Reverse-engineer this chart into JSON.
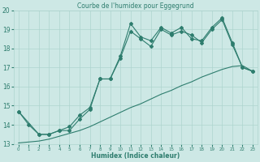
{
  "title": "Courbe de l'humidex pour Eggegrund",
  "xlabel": "Humidex (Indice chaleur)",
  "xlim": [
    -0.5,
    23.5
  ],
  "ylim": [
    13,
    20
  ],
  "yticks": [
    13,
    14,
    15,
    16,
    17,
    18,
    19,
    20
  ],
  "xticks": [
    0,
    1,
    2,
    3,
    4,
    5,
    6,
    7,
    8,
    9,
    10,
    11,
    12,
    13,
    14,
    15,
    16,
    17,
    18,
    19,
    20,
    21,
    22,
    23
  ],
  "line_color": "#2e7d6e",
  "bg_color": "#cde8e5",
  "grid_color": "#aed4cf",
  "line1_x": [
    0,
    1,
    2,
    3,
    4,
    5,
    6,
    7,
    8,
    9,
    10,
    11,
    12,
    13,
    14,
    15,
    16,
    17,
    18,
    19,
    20,
    21,
    22,
    23
  ],
  "line1_y": [
    14.7,
    14.0,
    13.5,
    13.5,
    13.7,
    13.7,
    14.3,
    14.8,
    16.4,
    16.4,
    17.6,
    19.3,
    18.6,
    18.4,
    19.1,
    18.8,
    19.1,
    18.5,
    18.4,
    19.1,
    19.6,
    18.3,
    17.0,
    16.8
  ],
  "line2_x": [
    0,
    2,
    3,
    4,
    5,
    6,
    7,
    8,
    9,
    10,
    11,
    12,
    13,
    14,
    15,
    16,
    17,
    18,
    19,
    20,
    21,
    22,
    23
  ],
  "line2_y": [
    14.7,
    13.5,
    13.5,
    13.7,
    13.9,
    14.5,
    14.9,
    16.4,
    16.4,
    17.5,
    18.9,
    18.5,
    18.1,
    19.0,
    18.7,
    18.9,
    18.7,
    18.3,
    19.0,
    19.5,
    18.2,
    17.0,
    16.8
  ],
  "line3_x": [
    0,
    1,
    2,
    3,
    4,
    5,
    6,
    7,
    8,
    9,
    10,
    11,
    12,
    13,
    14,
    15,
    16,
    17,
    18,
    19,
    20,
    21,
    22,
    23
  ],
  "line3_y": [
    13.05,
    13.1,
    13.15,
    13.25,
    13.4,
    13.55,
    13.7,
    13.9,
    14.15,
    14.4,
    14.65,
    14.9,
    15.1,
    15.35,
    15.6,
    15.8,
    16.05,
    16.25,
    16.5,
    16.7,
    16.9,
    17.05,
    17.1,
    16.8
  ]
}
